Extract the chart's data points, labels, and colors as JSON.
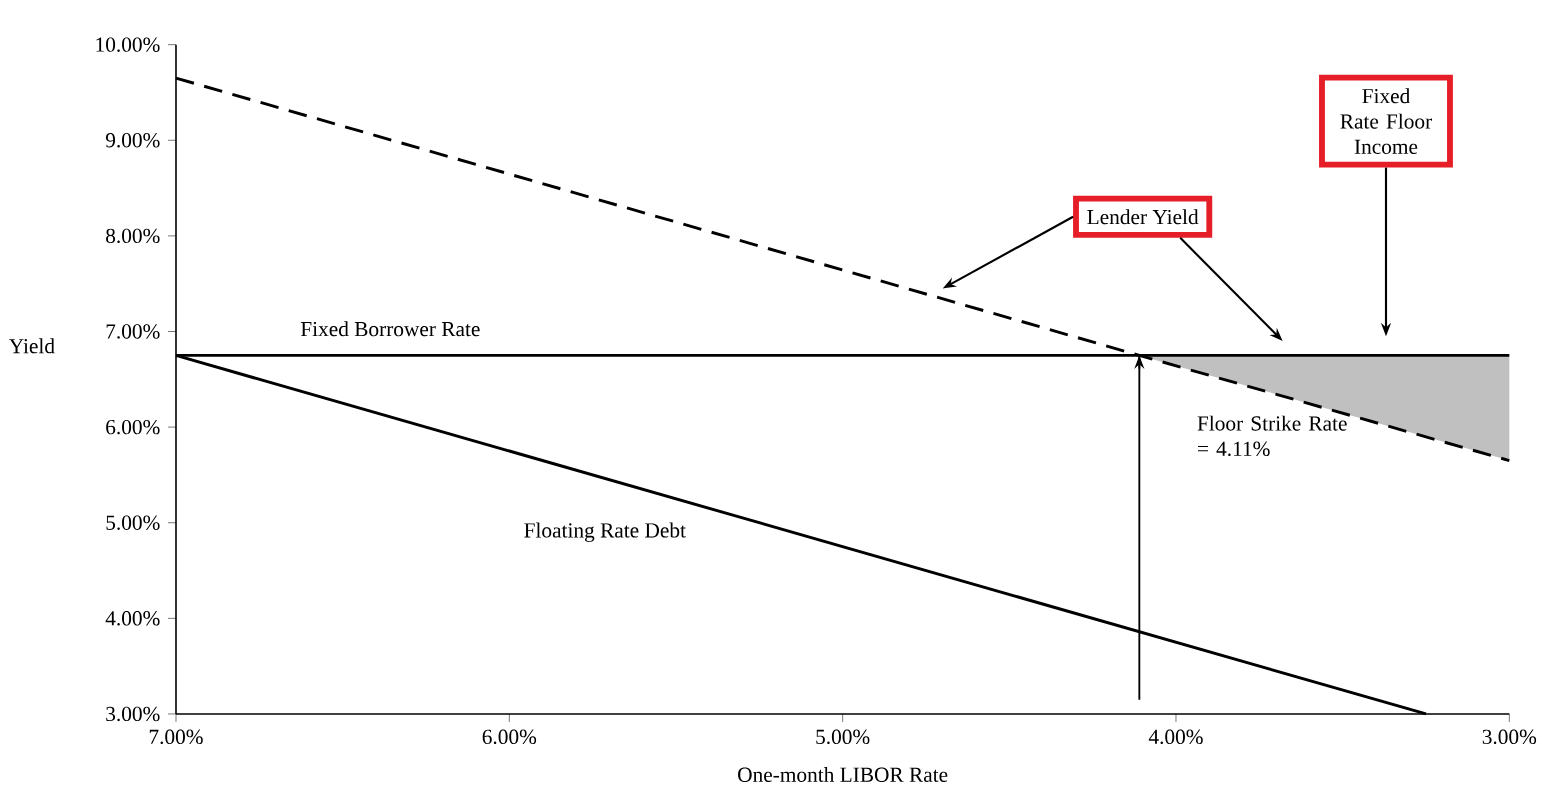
{
  "chart_data": {
    "type": "line",
    "xlabel": "One-month LIBOR Rate",
    "ylabel": "Yield",
    "xlim": [
      7,
      3
    ],
    "ylim": [
      3,
      10
    ],
    "xticks": [
      {
        "value": 7,
        "label": "7.00%"
      },
      {
        "value": 6,
        "label": "6.00%"
      },
      {
        "value": 5,
        "label": "5.00%"
      },
      {
        "value": 4,
        "label": "4.00%"
      },
      {
        "value": 3,
        "label": "3.00%"
      }
    ],
    "yticks": [
      {
        "value": 3,
        "label": "3.00%"
      },
      {
        "value": 4,
        "label": "4.00%"
      },
      {
        "value": 5,
        "label": "5.00%"
      },
      {
        "value": 6,
        "label": "6.00%"
      },
      {
        "value": 7,
        "label": "7.00%"
      },
      {
        "value": 8,
        "label": "8.00%"
      },
      {
        "value": 9,
        "label": "9.00%"
      },
      {
        "value": 10,
        "label": "10.00%"
      }
    ],
    "grid": false,
    "marker": "none",
    "series": [
      {
        "color": "#000000",
        "line_style": "dashed",
        "x": [
          7,
          4.11,
          3
        ],
        "values": [
          9.65,
          6.75,
          5.65
        ],
        "lower": [
          null,
          6.75,
          5.65
        ],
        "upper": [
          null,
          6.75,
          6.75
        ]
      },
      {
        "name": "Fixed Borrower Rate",
        "color": "#000000",
        "line_style": "solid",
        "x": [
          7,
          3
        ],
        "values": [
          6.75,
          6.75
        ]
      },
      {
        "name": "Floating Rate Debt",
        "color": "#000000",
        "line_style": "solid",
        "x": [
          7,
          3.25
        ],
        "values": [
          6.75,
          3.0
        ]
      }
    ],
    "annotations": [
      "Lender Yield",
      "Fixed Rate Floor Income"
    ],
    "ref_lines": [
      {
        "axis": "x",
        "value": 4.11,
        "label": "Floor Strike Rate = 4.11%"
      }
    ]
  }
}
